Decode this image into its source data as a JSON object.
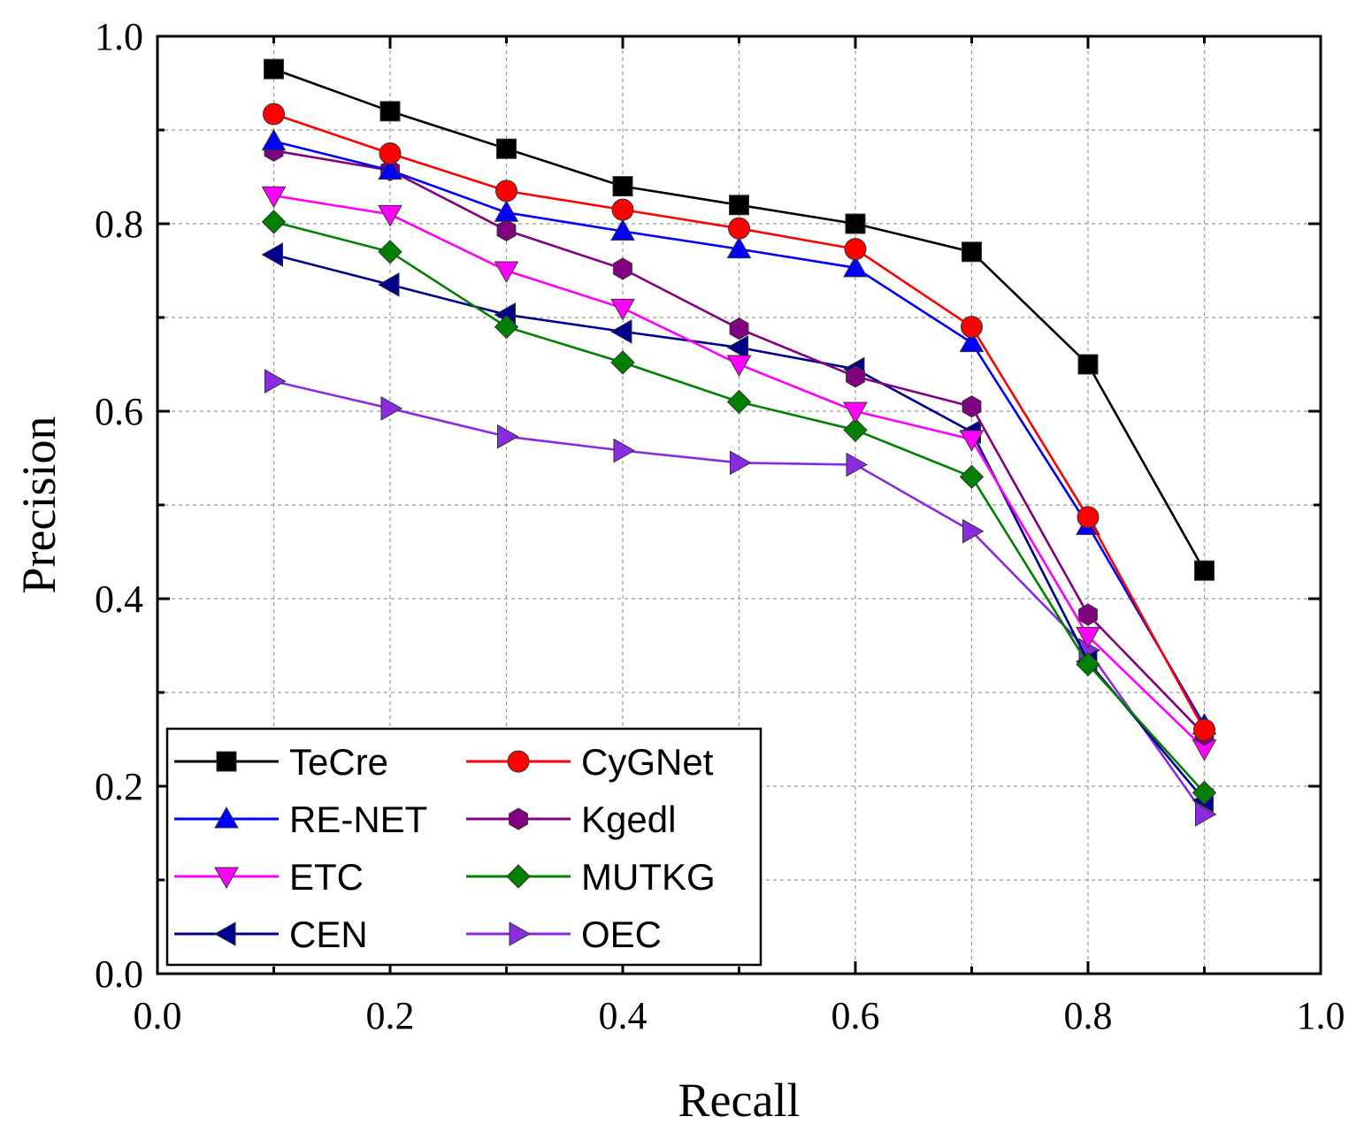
{
  "chart_data": {
    "type": "line",
    "title": "",
    "xlabel": "Recall",
    "ylabel": "Precision",
    "xlim": [
      0.0,
      1.0
    ],
    "ylim": [
      0.0,
      1.0
    ],
    "x_ticks": [
      "0.0",
      "0.2",
      "0.4",
      "0.6",
      "0.8",
      "1.0"
    ],
    "y_ticks": [
      "0.0",
      "0.2",
      "0.4",
      "0.6",
      "0.8",
      "1.0"
    ],
    "grid": true,
    "legend_position": "bottom-left",
    "x": [
      0.1,
      0.2,
      0.3,
      0.4,
      0.5,
      0.6,
      0.7,
      0.8,
      0.9
    ],
    "series": [
      {
        "name": "TeCre",
        "color": "#000000",
        "marker": "square",
        "values": [
          0.965,
          0.92,
          0.88,
          0.84,
          0.82,
          0.8,
          0.77,
          0.65,
          0.43
        ]
      },
      {
        "name": "CyGNet",
        "color": "#ff0000",
        "marker": "circle",
        "values": [
          0.917,
          0.875,
          0.835,
          0.815,
          0.795,
          0.773,
          0.69,
          0.487,
          0.26
        ]
      },
      {
        "name": "RE-NET",
        "color": "#0000ff",
        "marker": "triangle-up",
        "values": [
          0.888,
          0.857,
          0.812,
          0.792,
          0.773,
          0.753,
          0.673,
          0.478,
          0.265
        ]
      },
      {
        "name": "Kgedl",
        "color": "#800080",
        "marker": "hexagon",
        "values": [
          0.878,
          0.857,
          0.793,
          0.752,
          0.688,
          0.637,
          0.605,
          0.383,
          0.255
        ]
      },
      {
        "name": "ETC",
        "color": "#ff00ff",
        "marker": "triangle-down",
        "values": [
          0.83,
          0.81,
          0.75,
          0.71,
          0.65,
          0.6,
          0.57,
          0.36,
          0.24
        ]
      },
      {
        "name": "MUTKG",
        "color": "#008000",
        "marker": "diamond",
        "values": [
          0.802,
          0.77,
          0.69,
          0.652,
          0.61,
          0.58,
          0.53,
          0.33,
          0.193
        ]
      },
      {
        "name": "CEN",
        "color": "#00008b",
        "marker": "triangle-left",
        "values": [
          0.767,
          0.735,
          0.703,
          0.685,
          0.668,
          0.645,
          0.578,
          0.333,
          0.185
        ]
      },
      {
        "name": "OEC",
        "color": "#8a2be2",
        "marker": "triangle-right",
        "values": [
          0.632,
          0.603,
          0.573,
          0.558,
          0.545,
          0.543,
          0.472,
          0.345,
          0.17
        ]
      }
    ]
  }
}
